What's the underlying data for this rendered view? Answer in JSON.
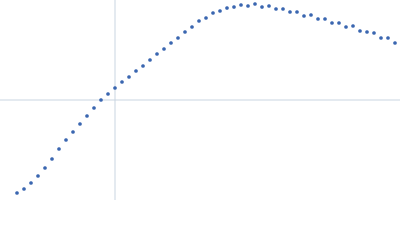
{
  "chart_data": {
    "type": "scatter",
    "color": "#3a66b0",
    "grid": true,
    "xlim": [
      0,
      400
    ],
    "ylim": [
      0,
      200
    ],
    "xticks": [
      115
    ],
    "yticks": [
      100
    ],
    "x": [
      17,
      24,
      31,
      38,
      45,
      52,
      59,
      66,
      73,
      80,
      87,
      94,
      101,
      108,
      115,
      122,
      129,
      136,
      143,
      150,
      157,
      164,
      171,
      178,
      185,
      192,
      199,
      206,
      213,
      220,
      227,
      234,
      241,
      248,
      255,
      262,
      269,
      276,
      283,
      290,
      297,
      304,
      311,
      318,
      325,
      332,
      339,
      346,
      353,
      360,
      367,
      374,
      381,
      388,
      395
    ],
    "y": [
      7,
      11,
      17,
      24,
      32,
      41,
      51,
      60,
      68,
      76,
      84,
      92,
      100,
      106,
      112,
      118,
      123,
      129,
      134,
      140,
      146,
      151,
      157,
      162,
      168,
      173,
      179,
      182,
      187,
      189,
      192,
      193,
      195,
      194,
      196,
      193,
      194,
      191,
      191,
      188,
      188,
      184,
      185,
      181,
      181,
      177,
      177,
      173,
      174,
      169,
      168,
      167,
      162,
      162,
      157
    ]
  }
}
